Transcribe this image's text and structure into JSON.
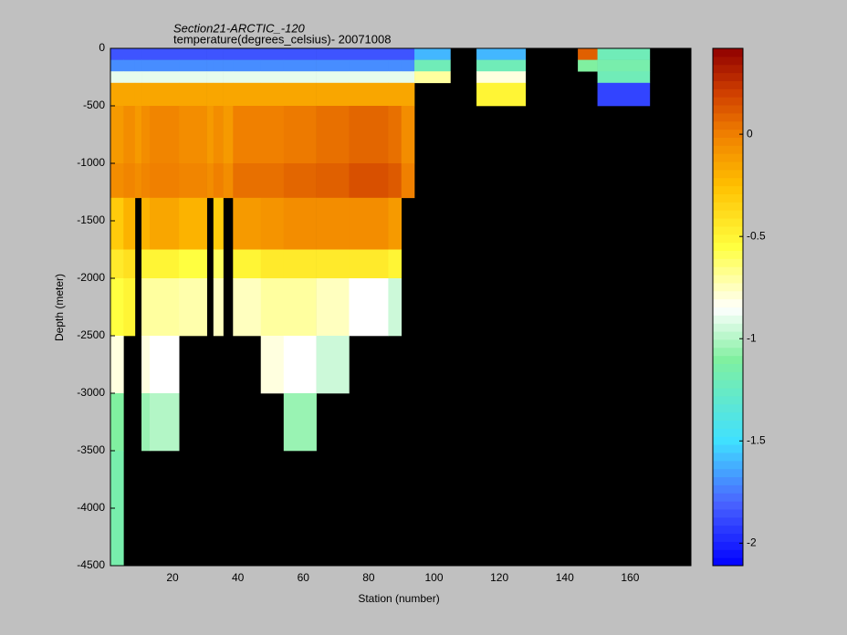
{
  "chart_data": {
    "type": "heatmap",
    "title": "Section21-ARCTIC_-120",
    "subtitle": "temperature(degrees_celsius)- 20071008",
    "x_label": "Station (number)",
    "y_label": "Depth (meter)",
    "xlim": [
      1,
      178.6
    ],
    "ylim": [
      -4500,
      0
    ],
    "xticks": [
      20,
      40,
      60,
      80,
      100,
      120,
      140,
      160
    ],
    "yticks": [
      0,
      -500,
      -1000,
      -1500,
      -2000,
      -2500,
      -3000,
      -3500,
      -4000,
      -4500
    ],
    "x_edges": [
      1,
      5,
      8.5,
      10.5,
      13,
      22,
      30.5,
      32.5,
      35.5,
      38.5,
      47,
      54,
      64,
      74,
      86,
      90,
      94,
      105,
      113,
      128,
      144,
      150,
      166,
      178.5
    ],
    "y_edges": [
      0,
      -100,
      -200,
      -300,
      -500,
      -1000,
      -1300,
      -1750,
      -2000,
      -2500,
      -3000,
      -3500,
      -4500
    ],
    "values": [
      [
        -1.85,
        -1.85,
        -1.85,
        -1.85,
        -1.85,
        -1.85,
        -1.85,
        -1.85,
        -1.85,
        -1.85,
        -1.85,
        -1.85,
        -1.85,
        -1.85,
        -1.85,
        -1.85,
        -1.6,
        null,
        -1.6,
        null,
        0.1,
        -1.2,
        null
      ],
      [
        -1.7,
        -1.7,
        -1.7,
        -1.7,
        -1.7,
        -1.7,
        -1.7,
        -1.7,
        -1.7,
        -1.7,
        -1.7,
        -1.7,
        -1.7,
        -1.7,
        -1.7,
        -1.7,
        -1.2,
        null,
        -1.2,
        null,
        -1.1,
        -1.15,
        null
      ],
      [
        -0.9,
        -0.9,
        -0.9,
        -0.9,
        -0.9,
        -0.9,
        -0.9,
        -0.9,
        -0.9,
        -0.9,
        -0.9,
        -0.9,
        -0.9,
        -0.9,
        -0.9,
        -0.9,
        -0.7,
        null,
        -0.8,
        null,
        null,
        -1.2,
        null
      ],
      [
        -0.15,
        -0.15,
        -0.15,
        -0.15,
        -0.15,
        -0.15,
        -0.15,
        -0.15,
        -0.15,
        -0.15,
        -0.15,
        -0.15,
        -0.15,
        -0.15,
        -0.15,
        -0.15,
        null,
        null,
        -0.5,
        null,
        null,
        -1.9,
        null
      ],
      [
        -0.1,
        -0.05,
        -0.1,
        -0.05,
        -0.02,
        -0.05,
        -0.1,
        -0.05,
        -0.1,
        0.0,
        0.0,
        0.02,
        0.05,
        0.08,
        0.05,
        -0.05,
        null,
        null,
        null,
        null,
        null,
        null,
        null
      ],
      [
        -0.05,
        -0.02,
        -0.05,
        -0.02,
        0.0,
        -0.02,
        -0.05,
        0.0,
        -0.05,
        0.05,
        0.05,
        0.08,
        0.1,
        0.15,
        0.12,
        0.0,
        null,
        null,
        null,
        null,
        null,
        null,
        null
      ],
      [
        -0.3,
        -0.2,
        null,
        -0.2,
        -0.15,
        -0.2,
        null,
        -0.3,
        null,
        -0.1,
        -0.08,
        -0.05,
        -0.05,
        -0.05,
        -0.1,
        null,
        null,
        null,
        null,
        null,
        null,
        null,
        null
      ],
      [
        -0.45,
        -0.4,
        null,
        -0.5,
        -0.5,
        -0.55,
        null,
        -0.6,
        null,
        -0.5,
        -0.45,
        -0.45,
        -0.45,
        -0.45,
        -0.5,
        null,
        null,
        null,
        null,
        null,
        null,
        null,
        null
      ],
      [
        -0.55,
        -0.5,
        null,
        -0.7,
        -0.7,
        -0.72,
        null,
        -0.75,
        null,
        -0.75,
        -0.7,
        -0.7,
        -0.75,
        -0.85,
        -0.95,
        null,
        null,
        null,
        null,
        null,
        null,
        null,
        null
      ],
      [
        -0.8,
        null,
        null,
        -0.8,
        -0.85,
        null,
        null,
        null,
        null,
        null,
        -0.8,
        -0.85,
        -0.95,
        null,
        null,
        null,
        null,
        null,
        null,
        null,
        null,
        null,
        null
      ],
      [
        -1.1,
        null,
        null,
        -1.05,
        -1.0,
        null,
        null,
        null,
        null,
        null,
        null,
        -1.05,
        null,
        null,
        null,
        null,
        null,
        null,
        null,
        null,
        null,
        null,
        null
      ],
      [
        -1.15,
        null,
        null,
        null,
        null,
        null,
        null,
        null,
        null,
        null,
        null,
        null,
        null,
        null,
        null,
        null,
        null,
        null,
        null,
        null,
        null,
        null,
        null
      ]
    ],
    "missing_color": "#000000",
    "clim": [
      -2.11,
      0.42
    ],
    "cticks": [
      0,
      -0.5,
      -1,
      -1.5,
      -2
    ],
    "colormap": [
      {
        "value": -2.11,
        "color": "#0000ff"
      },
      {
        "value": -1.8,
        "color": "#4a64ff"
      },
      {
        "value": -1.5,
        "color": "#40e0ff"
      },
      {
        "value": -1.1,
        "color": "#80f0a0"
      },
      {
        "value": -0.85,
        "color": "#ffffff"
      },
      {
        "value": -0.55,
        "color": "#ffff40"
      },
      {
        "value": -0.25,
        "color": "#ffc000"
      },
      {
        "value": 0,
        "color": "#f08000"
      },
      {
        "value": 0.2,
        "color": "#d04000"
      },
      {
        "value": 0.42,
        "color": "#900000"
      }
    ]
  }
}
